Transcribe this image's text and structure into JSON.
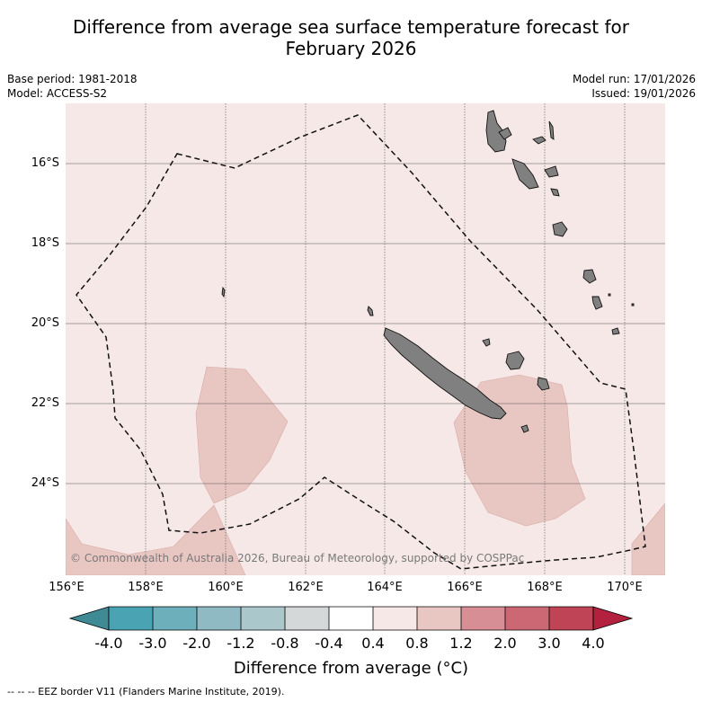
{
  "title": {
    "line1": "Difference from average sea surface temperature forecast for",
    "line2": "February 2026"
  },
  "meta_left": {
    "base_period": "Base period: 1981-2018",
    "model": "Model: ACCESS-S2"
  },
  "meta_right": {
    "model_run": "Model run: 17/01/2026",
    "issued": "Issued: 19/01/2026"
  },
  "map": {
    "latitude_labels": [
      "16°S",
      "18°S",
      "20°S",
      "22°S",
      "24°S"
    ],
    "longitude_labels": [
      "156°E",
      "158°E",
      "160°E",
      "162°E",
      "164°E",
      "166°E",
      "168°E",
      "170°E"
    ],
    "copyright": "© Commonwealth of Australia 2026, Bureau of Meteorology, supported by COSPPac",
    "colors": {
      "background_anomaly": "#f5e8e6",
      "warm_anomaly": "#e8c7c3",
      "land": "#808080",
      "grid": "#555555"
    }
  },
  "colorbar": {
    "ticks": [
      "-4.0",
      "-3.0",
      "-2.0",
      "-1.2",
      "-0.8",
      "-0.4",
      "0.4",
      "0.8",
      "1.2",
      "2.0",
      "3.0",
      "4.0"
    ],
    "colors": [
      "#4aa3b2",
      "#6eafbc",
      "#8fbac4",
      "#aac8cc",
      "#d4d8d8",
      "#ffffff",
      "#f5e8e6",
      "#e8c7c3",
      "#d78e95",
      "#cb6874",
      "#bf4455"
    ],
    "low_extend_color": "#3e8a95",
    "high_extend_color": "#b3213f",
    "title": "Difference from average (°C)"
  },
  "footnote": "--  --  -- EEZ border V11 (Flanders Marine Institute, 2019)."
}
